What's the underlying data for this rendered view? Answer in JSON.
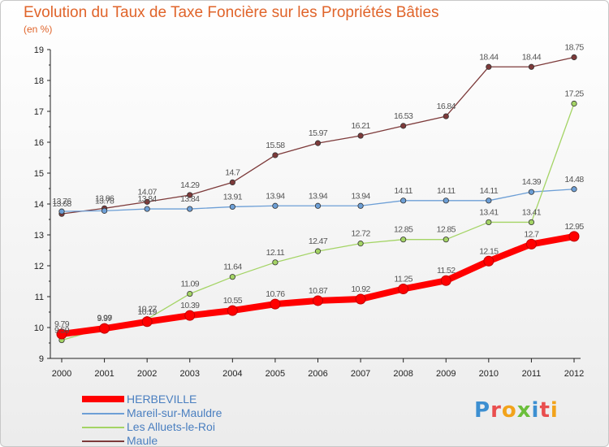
{
  "header": {
    "title": "Evolution du Taux de Taxe Foncière sur les Propriétés Bâties",
    "subtitle": "(en %)"
  },
  "chart_data": {
    "type": "line",
    "x": [
      "2000",
      "2001",
      "2002",
      "2003",
      "2004",
      "2005",
      "2006",
      "2007",
      "2008",
      "2009",
      "2010",
      "2011",
      "2012"
    ],
    "ylim": [
      9,
      19
    ],
    "yticks": [
      "9",
      "10",
      "11",
      "12",
      "13",
      "14",
      "15",
      "16",
      "17",
      "18",
      "19"
    ],
    "grid": false,
    "legend_position": "bottom-left",
    "series": [
      {
        "name": "HERBEVILLE",
        "color": "#ff0000",
        "values": [
          9.79,
          9.97,
          10.19,
          10.39,
          10.55,
          10.76,
          10.87,
          10.92,
          11.25,
          11.52,
          12.15,
          12.7,
          12.95
        ],
        "labels": [
          "9.79",
          "9.97",
          "10.19",
          "10.39",
          "10.55",
          "10.76",
          "10.87",
          "10.92",
          "11.25",
          "11.52",
          "12.15",
          "12.7",
          "12.95"
        ]
      },
      {
        "name": "Mareil-sur-Mauldre",
        "color": "#6d9fd6",
        "values": [
          13.76,
          13.78,
          13.84,
          13.84,
          13.91,
          13.94,
          13.94,
          13.94,
          14.11,
          14.11,
          14.11,
          14.39,
          14.48
        ],
        "labels": [
          "13.76",
          "13.78",
          "13.84",
          "13.84",
          "13.91",
          "13.94",
          "13.94",
          "13.94",
          "14.11",
          "14.11",
          "14.11",
          "14.39",
          "14.48"
        ]
      },
      {
        "name": "Les Alluets-le-Roi",
        "color": "#a4d465",
        "values": [
          9.59,
          9.99,
          10.27,
          11.09,
          11.64,
          12.11,
          12.47,
          12.72,
          12.85,
          12.85,
          13.41,
          13.41,
          17.25
        ],
        "labels": [
          "9.59",
          "9.99",
          "10.27",
          "11.09",
          "11.64",
          "12.11",
          "12.47",
          "12.72",
          "12.85",
          "12.85",
          "13.41",
          "13.41",
          "17.25"
        ]
      },
      {
        "name": "Maule",
        "color": "#7d3a3a",
        "values": [
          13.68,
          13.86,
          14.07,
          14.29,
          14.7,
          15.58,
          15.97,
          16.21,
          16.53,
          16.84,
          18.44,
          18.44,
          18.75
        ],
        "labels": [
          "13.68",
          "13.86",
          "14.07",
          "14.29",
          "14.7",
          "15.58",
          "15.97",
          "16.21",
          "16.53",
          "16.84",
          "18.44",
          "18.44",
          "18.75"
        ]
      }
    ]
  },
  "legend": {
    "items": [
      {
        "label": "HERBEVILLE",
        "color": "#ff0000"
      },
      {
        "label": "Mareil-sur-Mauldre",
        "color": "#6d9fd6"
      },
      {
        "label": "Les Alluets-le-Roi",
        "color": "#a4d465"
      },
      {
        "label": "Maule",
        "color": "#7d3a3a"
      }
    ]
  },
  "logo": {
    "text": "Proxiti",
    "colors": [
      "#3d8fd1",
      "#e94e4e",
      "#f2a31b",
      "#6bbf3b",
      "#3d8fd1",
      "#e94e4e",
      "#f2a31b"
    ]
  }
}
